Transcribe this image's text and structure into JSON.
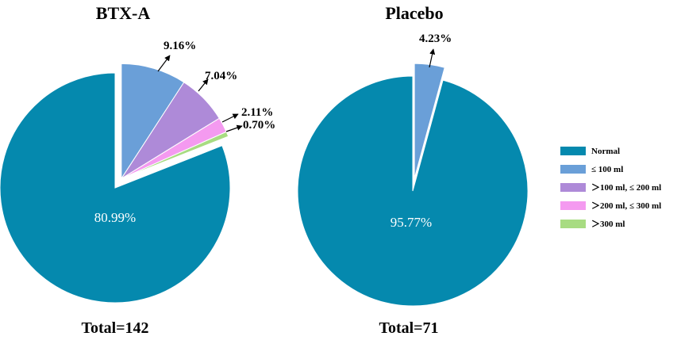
{
  "colors": {
    "normal": "#0589AE",
    "le100": "#6A9FD8",
    "100to200": "#AE8AD8",
    "200to300": "#F49AF0",
    "gt300": "#A8DC82"
  },
  "chart_data": [
    {
      "type": "pie",
      "title": "BTX-A",
      "total_label": "Total=142",
      "slices": [
        {
          "name": "Normal",
          "value": 80.99,
          "label": "80.99%",
          "color_key": "normal",
          "exploded": false
        },
        {
          "name": "≤ 100 ml",
          "value": 9.16,
          "label": "9.16%",
          "color_key": "le100",
          "exploded": true
        },
        {
          "name": "＞100 ml, ≤ 200 ml",
          "value": 7.04,
          "label": "7.04%",
          "color_key": "100to200",
          "exploded": true
        },
        {
          "name": "＞200 ml, ≤ 300 ml",
          "value": 2.11,
          "label": "2.11%",
          "color_key": "200to300",
          "exploded": true
        },
        {
          "name": "＞300 ml",
          "value": 0.7,
          "label": "0.70%",
          "color_key": "gt300",
          "exploded": true
        }
      ]
    },
    {
      "type": "pie",
      "title": "Placebo",
      "total_label": "Total=71",
      "slices": [
        {
          "name": "Normal",
          "value": 95.77,
          "label": "95.77%",
          "color_key": "normal",
          "exploded": false
        },
        {
          "name": "≤ 100 ml",
          "value": 4.23,
          "label": "4.23%",
          "color_key": "le100",
          "exploded": true
        }
      ]
    }
  ],
  "legend": [
    {
      "label": "Normal",
      "color_key": "normal"
    },
    {
      "label": "≤ 100 ml",
      "color_key": "le100"
    },
    {
      "label": "＞100 ml, ≤ 200 ml",
      "color_key": "100to200"
    },
    {
      "label": "＞200 ml, ≤ 300 ml",
      "color_key": "200to300"
    },
    {
      "label": "＞300 ml",
      "color_key": "gt300"
    }
  ]
}
